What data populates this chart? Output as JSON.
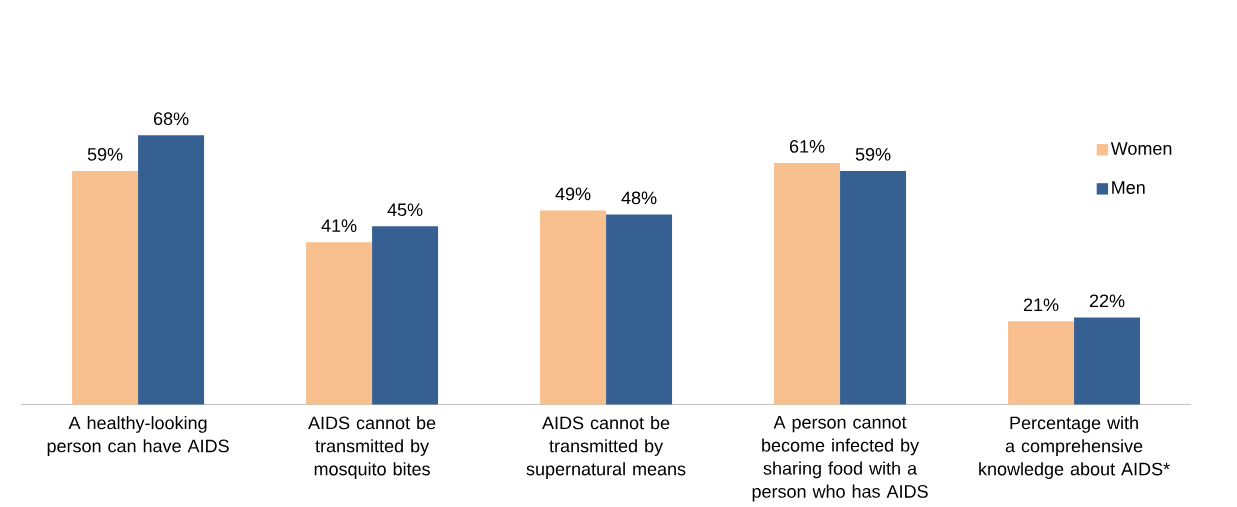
{
  "chart_data": {
    "type": "bar",
    "categories": [
      "A healthy-looking person can have  AIDS",
      "AIDS cannot be transmitted by mosquito bites",
      "AIDS cannot be transmitted by supernatural means",
      "A person cannot become infected by sharing food with a person who has AIDS",
      "Percentage with a comprehensive knowledge about AIDS*"
    ],
    "series": [
      {
        "name": "Women",
        "color": "#f9c08f",
        "values": [
          59,
          41,
          49,
          61,
          21
        ],
        "value_labels": [
          "59%",
          "41%",
          "49%",
          "61%",
          "21%"
        ]
      },
      {
        "name": "Men",
        "color": "#366092",
        "values": [
          68,
          45,
          48,
          59,
          22
        ],
        "value_labels": [
          "68%",
          "45%",
          "48%",
          "59%",
          "22%"
        ]
      }
    ],
    "legend": "top right"
  }
}
